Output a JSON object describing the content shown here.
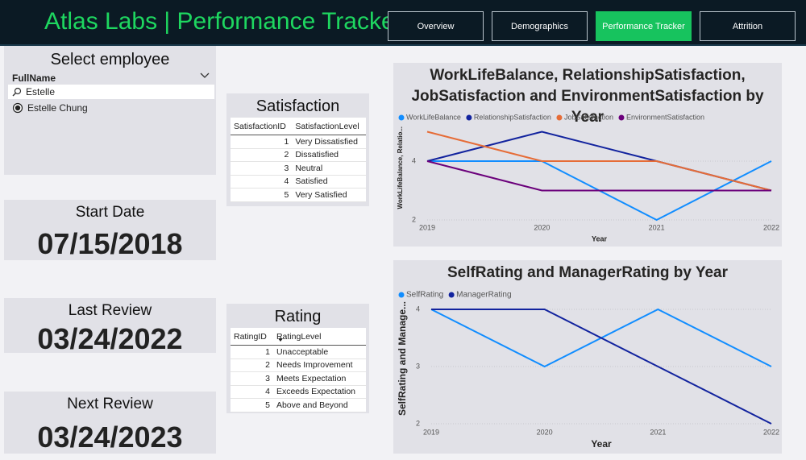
{
  "header": {
    "title": "Atlas Labs | Performance Tracker"
  },
  "nav": [
    "Overview",
    "Demographics",
    "Performance Tracker",
    "Attrition"
  ],
  "employee_slicer": {
    "title": "Select employee",
    "field": "FullName",
    "search": "Estelle",
    "options": [
      "Estelle Chung"
    ]
  },
  "start_date": {
    "label": "Start Date",
    "value": "07/15/2018"
  },
  "last_review": {
    "label": "Last Review",
    "value": "03/24/2022"
  },
  "next_review": {
    "label": "Next Review",
    "value": "03/24/2023"
  },
  "satisfaction": {
    "title": "Satisfaction",
    "columns": [
      "SatisfactionID",
      "SatisfactionLevel"
    ],
    "rows": [
      [
        1,
        "Very Dissatisfied"
      ],
      [
        2,
        "Dissatisfied"
      ],
      [
        3,
        "Neutral"
      ],
      [
        4,
        "Satisfied"
      ],
      [
        5,
        "Very Satisfied"
      ]
    ]
  },
  "rating": {
    "title": "Rating",
    "columns": [
      "RatingID",
      "RatingLevel"
    ],
    "rows": [
      [
        1,
        "Unacceptable"
      ],
      [
        2,
        "Needs Improvement"
      ],
      [
        3,
        "Meets Expectation"
      ],
      [
        4,
        "Exceeds Expectation"
      ],
      [
        5,
        "Above and Beyond"
      ]
    ]
  },
  "chart_data": [
    {
      "type": "line",
      "title": "WorkLifeBalance, RelationshipSatisfaction, JobSatisfaction and EnvironmentSatisfaction by Year",
      "x_label": "Year",
      "y_label": "WorkLifeBalance, Relatio...",
      "categories": [
        "2019",
        "2020",
        "2021",
        "2022"
      ],
      "series": [
        {
          "name": "WorkLifeBalance",
          "color": "#118dff",
          "values": [
            4,
            4,
            2,
            4
          ]
        },
        {
          "name": "RelationshipSatisfaction",
          "color": "#12239e",
          "values": [
            4,
            5,
            4,
            3
          ]
        },
        {
          "name": "JobSatisfaction",
          "color": "#e66c37",
          "values": [
            5,
            4,
            4,
            3
          ]
        },
        {
          "name": "EnvironmentSatisfaction",
          "color": "#6b007b",
          "values": [
            4,
            3,
            3,
            3
          ]
        }
      ],
      "ylim": [
        2,
        5
      ],
      "yticks": [
        2,
        4
      ],
      "grid": true,
      "legend": "top-left"
    },
    {
      "type": "line",
      "title": "SelfRating and ManagerRating by Year",
      "x_label": "Year",
      "y_label": "SelfRating and Manage...",
      "categories": [
        "2019",
        "2020",
        "2021",
        "2022"
      ],
      "series": [
        {
          "name": "SelfRating",
          "color": "#118dff",
          "values": [
            4,
            3,
            4,
            3
          ]
        },
        {
          "name": "ManagerRating",
          "color": "#12239e",
          "values": [
            4,
            4,
            3,
            2
          ]
        }
      ],
      "ylim": [
        2,
        4
      ],
      "yticks": [
        2,
        3,
        4
      ],
      "grid": true,
      "legend": "top-left"
    }
  ]
}
